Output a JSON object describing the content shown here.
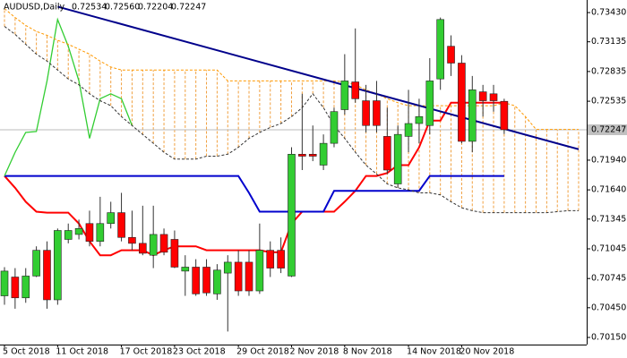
{
  "chart_data": {
    "type": "candlestick",
    "title": "AUDUSD,Daily",
    "title_values": [
      "0.72534",
      "0.72560",
      "0.72204",
      "0.72247"
    ],
    "categories": [
      "5 Oct 2018",
      null,
      null,
      null,
      null,
      "11 Oct 2018",
      null,
      null,
      null,
      null,
      null,
      "17 Oct 2018",
      null,
      null,
      null,
      null,
      "23 Oct 2018",
      null,
      null,
      null,
      null,
      null,
      "29 Oct 2018",
      null,
      null,
      null,
      null,
      "2 Nov 2018",
      null,
      null,
      null,
      null,
      "8 Nov 2018",
      null,
      null,
      null,
      null,
      null,
      "14 Nov 2018",
      null,
      null,
      null,
      null,
      "20 Nov 2018",
      null,
      null,
      null,
      null,
      null,
      null,
      null,
      null,
      null,
      null,
      null
    ],
    "open": [
      0.7057,
      0.7076,
      0.7055,
      0.7077,
      0.7103,
      0.7053,
      0.7114,
      0.7119,
      0.713,
      0.7112,
      0.713,
      0.7141,
      0.7116,
      0.711,
      0.7098,
      0.7119,
      0.7114,
      0.7082,
      0.7086,
      0.7086,
      0.7059,
      0.708,
      0.7091,
      0.7091,
      0.7062,
      0.7103,
      0.7103,
      0.7077,
      0.72,
      0.72,
      0.7189,
      0.7211,
      0.7245,
      0.7273,
      0.7254,
      0.7254,
      0.7218,
      0.717,
      0.7218,
      0.7231,
      0.7229,
      0.7276,
      0.7309,
      0.7292,
      0.7213,
      0.7263,
      0.7261,
      0.72534,
      null,
      null,
      null,
      null,
      null,
      null,
      null
    ],
    "high": [
      0.7086,
      0.7085,
      0.7085,
      0.7107,
      0.7112,
      0.7125,
      0.713,
      0.7134,
      0.7143,
      0.7157,
      0.7152,
      0.7161,
      0.7143,
      0.7148,
      0.7148,
      0.7125,
      0.7123,
      0.7098,
      0.7094,
      0.7094,
      0.7089,
      0.7098,
      0.7103,
      0.7103,
      0.713,
      0.7112,
      0.7116,
      0.7207,
      0.7261,
      0.7229,
      0.722,
      0.7247,
      0.7301,
      0.7327,
      0.727,
      0.7274,
      0.7247,
      0.7229,
      0.7265,
      0.7256,
      0.7297,
      0.7338,
      0.732,
      0.73,
      0.7279,
      0.727,
      0.727,
      0.7256,
      null,
      null,
      null,
      null,
      null,
      null,
      null
    ],
    "low": [
      0.7048,
      0.7044,
      0.705,
      0.7076,
      0.7044,
      0.7048,
      0.711,
      0.7114,
      0.7107,
      0.7107,
      0.7125,
      0.7112,
      0.7103,
      0.7098,
      0.7085,
      0.7098,
      0.7085,
      0.7057,
      0.7057,
      0.7057,
      0.7053,
      0.7021,
      0.7057,
      0.7057,
      0.7059,
      0.7076,
      0.708,
      0.7076,
      0.7184,
      0.7193,
      0.7184,
      0.7207,
      0.724,
      0.7252,
      0.7222,
      0.7222,
      0.718,
      0.7166,
      0.7202,
      0.7211,
      0.722,
      0.7265,
      0.7279,
      0.7211,
      0.7202,
      0.7238,
      0.7243,
      0.72204,
      null,
      null,
      null,
      null,
      null,
      null,
      null
    ],
    "close": [
      0.7082,
      0.7055,
      0.7077,
      0.7103,
      0.7053,
      0.7123,
      0.7123,
      0.7125,
      0.7112,
      0.713,
      0.7141,
      0.7116,
      0.711,
      0.71,
      0.7119,
      0.7101,
      0.7086,
      0.7086,
      0.7059,
      0.706,
      0.7083,
      0.7091,
      0.7062,
      0.7062,
      0.7103,
      0.7085,
      0.7085,
      0.72,
      0.7198,
      0.7198,
      0.7211,
      0.7243,
      0.7274,
      0.7256,
      0.7229,
      0.7229,
      0.7184,
      0.722,
      0.7231,
      0.7238,
      0.7274,
      0.7336,
      0.7292,
      0.7213,
      0.7265,
      0.7254,
      0.7254,
      0.72247,
      null,
      null,
      null,
      null,
      null,
      null,
      null
    ],
    "up_color": "#32cd32",
    "down_color": "#ff0000",
    "lines": [
      {
        "color": "#ff0000",
        "dashed": false,
        "values": [
          0.7178,
          0.7166,
          0.7152,
          0.7142,
          0.7141,
          0.7141,
          0.7141,
          0.713,
          0.7112,
          0.7098,
          0.7098,
          0.7103,
          0.7103,
          0.7103,
          0.7098,
          0.7103,
          0.7107,
          0.7107,
          0.7107,
          0.7103,
          0.7103,
          0.7103,
          0.7103,
          0.7103,
          0.7103,
          0.7101,
          0.7101,
          0.713,
          0.7142,
          0.7142,
          0.7142,
          0.7142,
          0.7152,
          0.7163,
          0.7178,
          0.7178,
          0.7181,
          0.7189,
          0.7189,
          0.7207,
          0.7234,
          0.7234,
          0.7252,
          0.7252,
          0.7252,
          0.7252,
          0.7252,
          0.7252,
          null,
          null,
          null,
          null,
          null,
          null,
          null
        ]
      },
      {
        "color": "#0000cd",
        "dashed": false,
        "values": [
          0.7178,
          0.7178,
          0.7178,
          0.7178,
          0.7178,
          0.7178,
          0.7178,
          0.7178,
          0.7178,
          0.7178,
          0.7178,
          0.7178,
          0.7178,
          0.7178,
          0.7178,
          0.7178,
          0.7178,
          0.7178,
          0.7178,
          0.7178,
          0.7178,
          0.7178,
          0.7178,
          0.7161,
          0.7142,
          0.7142,
          0.7142,
          0.7142,
          0.7142,
          0.7142,
          0.7142,
          0.7163,
          0.7163,
          0.7163,
          0.7163,
          0.7163,
          0.7163,
          0.7163,
          0.7163,
          0.7163,
          0.7178,
          0.7178,
          0.7178,
          0.7178,
          0.7178,
          0.7178,
          0.7178,
          0.7178,
          null,
          null,
          null,
          null,
          null,
          null,
          null
        ]
      },
      {
        "color": "#32cd32",
        "dashed": false,
        "values": [
          0.7178,
          0.7202,
          0.7222,
          0.7223,
          0.7274,
          0.7336,
          0.7309,
          0.7274,
          0.7216,
          0.7256,
          0.7261,
          0.7256,
          0.7229,
          null,
          null,
          null,
          null,
          null,
          null,
          null,
          null,
          null,
          null,
          null,
          null,
          null,
          null,
          null,
          null,
          null,
          null,
          null,
          null,
          null,
          null,
          null,
          null,
          null,
          null,
          null,
          null,
          null,
          null,
          null,
          null,
          null,
          null,
          null,
          null,
          null,
          null,
          null,
          null,
          null,
          null
        ]
      },
      {
        "color": "#333333",
        "dashed": true,
        "values": [
          0.7329,
          0.7321,
          0.7311,
          0.7301,
          0.7294,
          0.7285,
          0.7276,
          0.727,
          0.7261,
          0.7254,
          0.7249,
          0.7238,
          0.7229,
          0.722,
          0.7211,
          0.7202,
          0.7195,
          0.7195,
          0.7195,
          0.7198,
          0.7198,
          0.72,
          0.7207,
          0.7216,
          0.7222,
          0.7227,
          0.7231,
          0.7238,
          0.7247,
          0.7261,
          0.7247,
          0.7229,
          0.7216,
          0.7202,
          0.7189,
          0.718,
          0.717,
          0.7166,
          0.7164,
          0.7161,
          0.7161,
          0.7159,
          0.7152,
          0.7146,
          0.7143,
          0.7141,
          0.7141,
          0.7141,
          0.7141,
          0.7141,
          0.7141,
          0.7141,
          0.7142,
          0.7143,
          0.7143
        ]
      },
      {
        "color": "#ff9900",
        "dashed": true,
        "values": [
          0.7347,
          0.7338,
          0.733,
          0.7324,
          0.732,
          0.7315,
          0.7311,
          0.7306,
          0.7301,
          0.7294,
          0.7288,
          0.7285,
          0.7285,
          0.7285,
          0.7285,
          0.7285,
          0.7285,
          0.7285,
          0.7285,
          0.7285,
          0.7285,
          0.7274,
          0.7274,
          0.7274,
          0.7274,
          0.7274,
          0.7274,
          0.7274,
          0.7274,
          0.7274,
          0.7274,
          0.7274,
          0.7273,
          0.727,
          0.7265,
          0.7261,
          0.7256,
          0.7252,
          0.7249,
          0.7249,
          0.7249,
          0.7249,
          0.7249,
          0.7249,
          0.7249,
          0.7249,
          0.7249,
          0.7252,
          0.7249,
          0.7238,
          0.7225,
          0.7225,
          0.7225,
          0.7225,
          0.7225
        ]
      }
    ],
    "cloud_color": "#f0a040",
    "trendline": {
      "x": [
        5,
        54
      ],
      "y": [
        0.7349,
        0.7205
      ],
      "color": "#00008b"
    },
    "last_price": 0.72247,
    "ylim": [
      0.70078,
      0.73557
    ],
    "yticks": [
      {
        "value": 0.7343,
        "label": "0.73430"
      },
      0.73135,
      0.72835,
      0.72535,
      {
        "value": 0.7194,
        "label": "0.71940"
      },
      {
        "value": 0.7164,
        "label": "0.71640"
      },
      0.71345,
      0.71045,
      0.70745,
      {
        "value": 0.7045,
        "label": "0.70450"
      },
      {
        "value": 0.7015,
        "label": "0.70150"
      }
    ]
  }
}
